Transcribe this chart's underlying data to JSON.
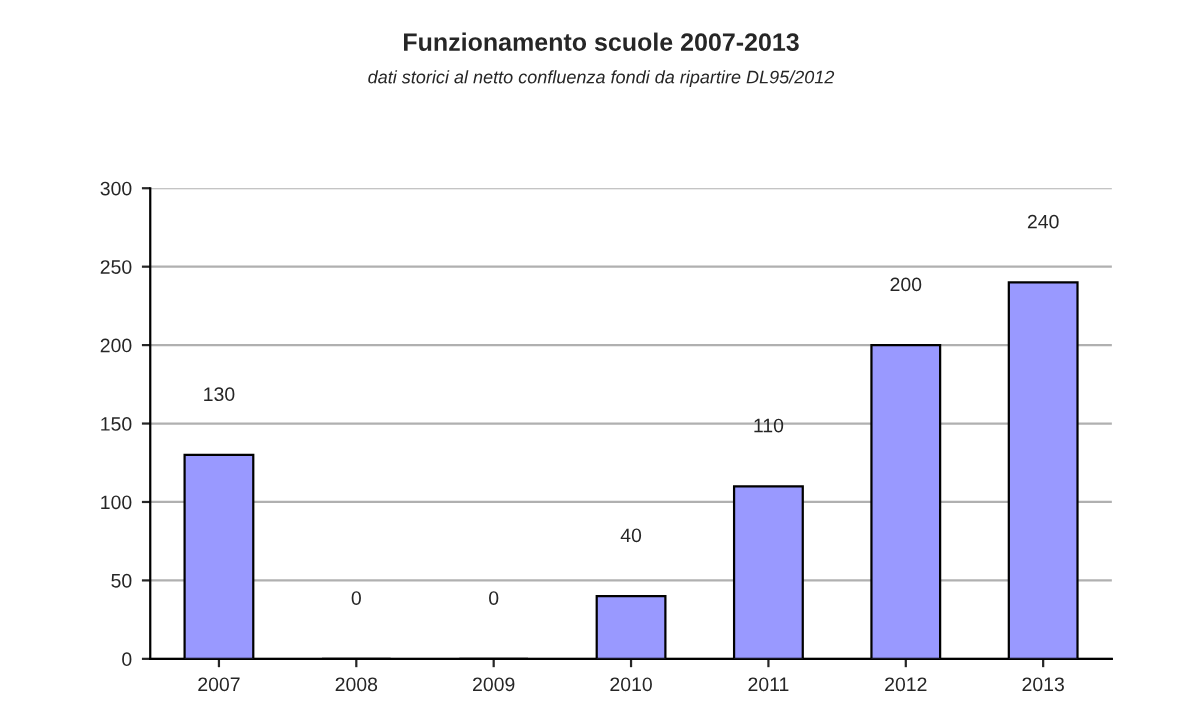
{
  "chart_data": {
    "type": "bar",
    "title": "Funzionamento scuole 2007-2013",
    "subtitle": "dati storici al netto confluenza fondi da ripartire DL95/2012",
    "categories": [
      "2007",
      "2008",
      "2009",
      "2010",
      "2011",
      "2012",
      "2013"
    ],
    "values": [
      130,
      0,
      0,
      40,
      110,
      200,
      240
    ],
    "color": "#9999ff",
    "ylim": [
      0,
      300
    ],
    "yticks": [
      0,
      50,
      100,
      150,
      200,
      250,
      300
    ],
    "grid": "y",
    "data_labels": true
  }
}
